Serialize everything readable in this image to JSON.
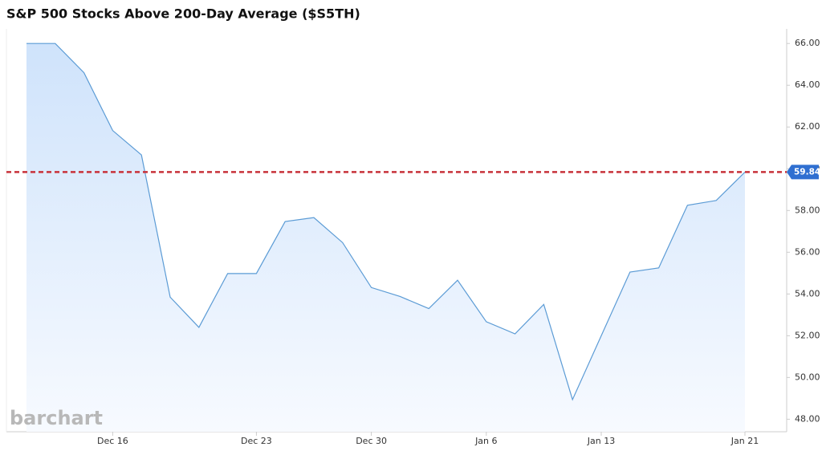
{
  "chart_data": {
    "type": "area",
    "title": "S&P 500 Stocks Above 200-Day Average ($S5TH)",
    "watermark": "barchart",
    "categories": [
      null,
      null,
      null,
      "Dec 16",
      null,
      null,
      null,
      null,
      "Dec 23",
      null,
      null,
      null,
      "Dec 30",
      null,
      null,
      null,
      "Jan 6",
      null,
      null,
      null,
      "Jan 13",
      null,
      null,
      null,
      null,
      "Jan 21"
    ],
    "values": [
      66.0,
      66.0,
      64.6,
      61.83,
      60.66,
      53.85,
      52.4,
      54.98,
      54.98,
      57.47,
      57.66,
      56.46,
      54.31,
      53.88,
      53.3,
      54.66,
      52.67,
      52.09,
      53.5,
      48.94,
      52.0,
      55.05,
      55.25,
      58.25,
      58.48,
      59.84
    ],
    "color": "#5b9bd5",
    "ylim": [
      47.4,
      66.7
    ],
    "yticks": [
      {
        "value": 48,
        "label": "48.00"
      },
      {
        "value": 50,
        "label": "50.00"
      },
      {
        "value": 52,
        "label": "52.00"
      },
      {
        "value": 54,
        "label": "54.00"
      },
      {
        "value": 56,
        "label": "56.00"
      },
      {
        "value": 58,
        "label": "58.00"
      },
      {
        "value": 60,
        "label": "60.00"
      },
      {
        "value": 62,
        "label": "62.00"
      },
      {
        "value": 64,
        "label": "64.00"
      },
      {
        "value": 66,
        "label": "66.00"
      }
    ],
    "reference_line": 59.84,
    "reference_color": "#c8323a",
    "grid": false
  }
}
